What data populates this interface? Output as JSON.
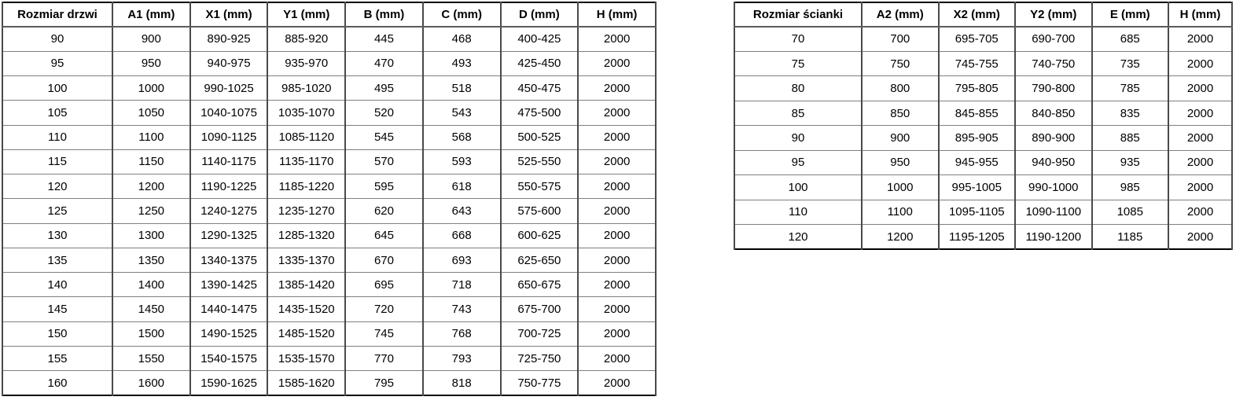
{
  "page": {
    "background_color": "#ffffff",
    "text_color": "#000000",
    "border_outer_color": "#000000",
    "border_vertical_color": "#4a4a4a",
    "border_horizontal_color": "#7f7f7f"
  },
  "tables": {
    "doors": {
      "title": "Rozmiar drzwi",
      "headers": [
        "Rozmiar drzwi",
        "A1 (mm)",
        "X1 (mm)",
        "Y1 (mm)",
        "B (mm)",
        "C (mm)",
        "D (mm)",
        "H (mm)"
      ],
      "rows": [
        [
          "90",
          "900",
          "890-925",
          "885-920",
          "445",
          "468",
          "400-425",
          "2000"
        ],
        [
          "95",
          "950",
          "940-975",
          "935-970",
          "470",
          "493",
          "425-450",
          "2000"
        ],
        [
          "100",
          "1000",
          "990-1025",
          "985-1020",
          "495",
          "518",
          "450-475",
          "2000"
        ],
        [
          "105",
          "1050",
          "1040-1075",
          "1035-1070",
          "520",
          "543",
          "475-500",
          "2000"
        ],
        [
          "110",
          "1100",
          "1090-1125",
          "1085-1120",
          "545",
          "568",
          "500-525",
          "2000"
        ],
        [
          "115",
          "1150",
          "1140-1175",
          "1135-1170",
          "570",
          "593",
          "525-550",
          "2000"
        ],
        [
          "120",
          "1200",
          "1190-1225",
          "1185-1220",
          "595",
          "618",
          "550-575",
          "2000"
        ],
        [
          "125",
          "1250",
          "1240-1275",
          "1235-1270",
          "620",
          "643",
          "575-600",
          "2000"
        ],
        [
          "130",
          "1300",
          "1290-1325",
          "1285-1320",
          "645",
          "668",
          "600-625",
          "2000"
        ],
        [
          "135",
          "1350",
          "1340-1375",
          "1335-1370",
          "670",
          "693",
          "625-650",
          "2000"
        ],
        [
          "140",
          "1400",
          "1390-1425",
          "1385-1420",
          "695",
          "718",
          "650-675",
          "2000"
        ],
        [
          "145",
          "1450",
          "1440-1475",
          "1435-1520",
          "720",
          "743",
          "675-700",
          "2000"
        ],
        [
          "150",
          "1500",
          "1490-1525",
          "1485-1520",
          "745",
          "768",
          "700-725",
          "2000"
        ],
        [
          "155",
          "1550",
          "1540-1575",
          "1535-1570",
          "770",
          "793",
          "725-750",
          "2000"
        ],
        [
          "160",
          "1600",
          "1590-1625",
          "1585-1620",
          "795",
          "818",
          "750-775",
          "2000"
        ]
      ]
    },
    "walls": {
      "title": "Rozmiar ścianki",
      "headers": [
        "Rozmiar ścianki",
        "A2 (mm)",
        "X2 (mm)",
        "Y2 (mm)",
        "E (mm)",
        "H (mm)"
      ],
      "rows": [
        [
          "70",
          "700",
          "695-705",
          "690-700",
          "685",
          "2000"
        ],
        [
          "75",
          "750",
          "745-755",
          "740-750",
          "735",
          "2000"
        ],
        [
          "80",
          "800",
          "795-805",
          "790-800",
          "785",
          "2000"
        ],
        [
          "85",
          "850",
          "845-855",
          "840-850",
          "835",
          "2000"
        ],
        [
          "90",
          "900",
          "895-905",
          "890-900",
          "885",
          "2000"
        ],
        [
          "95",
          "950",
          "945-955",
          "940-950",
          "935",
          "2000"
        ],
        [
          "100",
          "1000",
          "995-1005",
          "990-1000",
          "985",
          "2000"
        ],
        [
          "110",
          "1100",
          "1095-1105",
          "1090-1100",
          "1085",
          "2000"
        ],
        [
          "120",
          "1200",
          "1195-1205",
          "1190-1200",
          "1185",
          "2000"
        ]
      ]
    }
  }
}
